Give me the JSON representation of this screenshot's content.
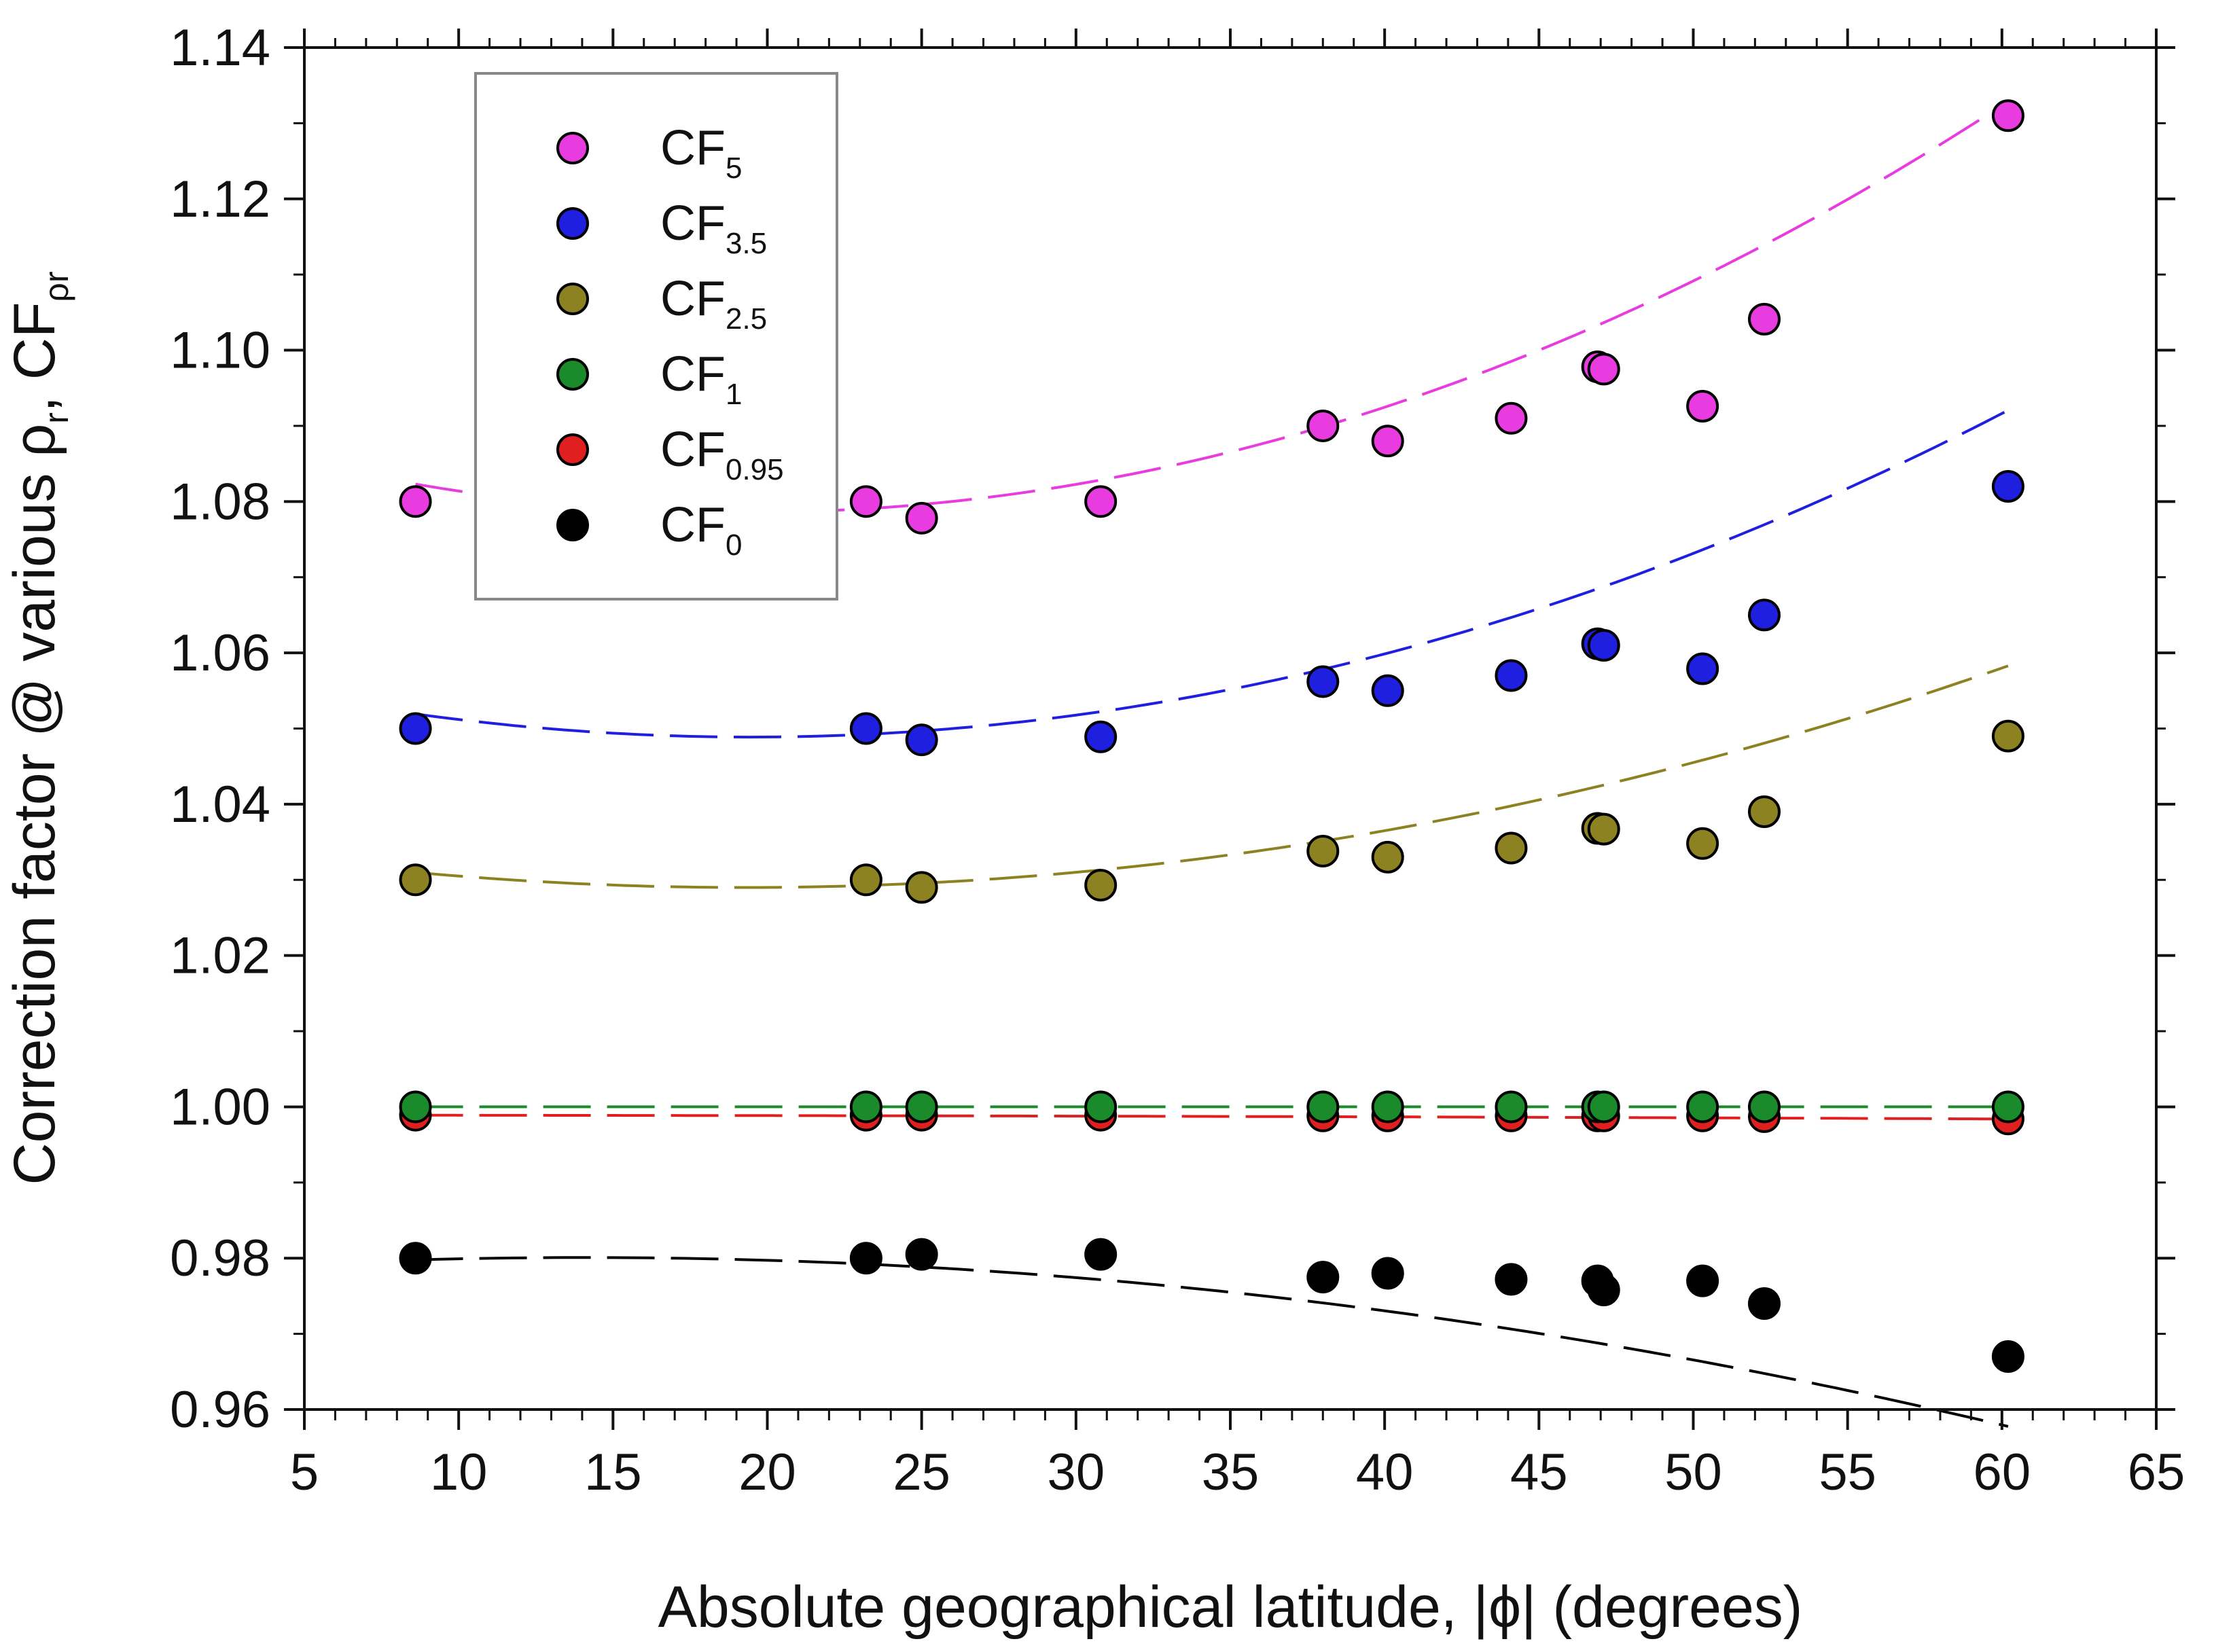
{
  "chart_data": {
    "type": "scatter",
    "title": "",
    "xlabel": "Absolute geographical latitude, |ϕ| (degrees)",
    "ylabel": {
      "prefix": "Correction factor @ various ρ",
      "sub1": "r",
      "mid": ", CF",
      "sub2": "ρr"
    },
    "xlim": [
      5,
      65
    ],
    "ylim": [
      0.96,
      1.14
    ],
    "x_ticks": [
      "5",
      "10",
      "15",
      "20",
      "25",
      "30",
      "35",
      "40",
      "45",
      "50",
      "55",
      "60",
      "65"
    ],
    "y_ticks": [
      "0.96",
      "0.98",
      "1.00",
      "1.02",
      "1.04",
      "1.06",
      "1.08",
      "1.10",
      "1.12",
      "1.14"
    ],
    "grid": false,
    "legend_position": "top-left",
    "fit_lines": "dashed quadratic trend per series",
    "series": [
      {
        "name": "CF",
        "sub": "5",
        "color": "#e83ce0",
        "x": [
          8.6,
          23.2,
          25.0,
          30.8,
          38.0,
          40.1,
          44.1,
          46.9,
          47.1,
          50.3,
          52.3,
          60.2
        ],
        "y": [
          1.08,
          1.08,
          1.0778,
          1.08,
          1.09,
          1.088,
          1.091,
          1.0978,
          1.0975,
          1.0926,
          1.1041,
          1.131
        ],
        "fit": [
          1.0907,
          -0.001256,
          3.25e-05
        ]
      },
      {
        "name": "CF",
        "sub": "3.5",
        "color": "#1f1fe0",
        "x": [
          8.6,
          23.2,
          25.0,
          30.8,
          38.0,
          40.1,
          44.1,
          46.9,
          47.1,
          50.3,
          52.3,
          60.2
        ],
        "y": [
          1.05,
          1.05,
          1.0485,
          1.0489,
          1.0562,
          1.055,
          1.057,
          1.0612,
          1.061,
          1.0579,
          1.065,
          1.082
        ],
        "fit": [
          1.0587,
          -0.001011,
          2.6e-05
        ]
      },
      {
        "name": "CF",
        "sub": "2.5",
        "color": "#8c8222",
        "x": [
          8.6,
          23.2,
          25.0,
          30.8,
          38.0,
          40.1,
          44.1,
          46.9,
          47.1,
          50.3,
          52.3,
          60.2
        ],
        "y": [
          1.03,
          1.03,
          1.029,
          1.0293,
          1.0338,
          1.033,
          1.0342,
          1.0368,
          1.0367,
          1.0348,
          1.039,
          1.049
        ],
        "fit": [
          1.0355,
          -0.000675,
          1.75e-05
        ]
      },
      {
        "name": "CF",
        "sub": "1",
        "color": "#1a8a2a",
        "x": [
          8.6,
          23.2,
          25.0,
          30.8,
          38.0,
          40.1,
          44.1,
          46.9,
          47.1,
          50.3,
          52.3,
          60.2
        ],
        "y": [
          1.0,
          1.0,
          1.0,
          1.0,
          1.0,
          1.0,
          1.0,
          1.0,
          1.0,
          1.0,
          1.0,
          1.0
        ],
        "fit": [
          1.0,
          0,
          0
        ]
      },
      {
        "name": "CF",
        "sub": "0.95",
        "color": "#e02020",
        "x": [
          8.6,
          23.2,
          25.0,
          30.8,
          38.0,
          40.1,
          44.1,
          46.9,
          47.1,
          50.3,
          52.3,
          60.2
        ],
        "y": [
          0.9989,
          0.9989,
          0.9989,
          0.9989,
          0.9988,
          0.9988,
          0.9988,
          0.9988,
          0.9988,
          0.9988,
          0.9987,
          0.9984
        ],
        "fit": [
          0.9989,
          0,
          -1.4e-07
        ]
      },
      {
        "name": "CF",
        "sub": "0",
        "color": "#000000",
        "x": [
          8.6,
          23.2,
          25.0,
          30.8,
          38.0,
          40.1,
          44.1,
          46.9,
          47.1,
          50.3,
          52.3,
          60.2
        ],
        "y": [
          0.98,
          0.98,
          0.9805,
          0.9805,
          0.9775,
          0.978,
          0.9772,
          0.977,
          0.9758,
          0.977,
          0.974,
          0.967
        ],
        "fit": [
          0.978,
          0.000296,
          -1.05e-05
        ]
      }
    ]
  }
}
